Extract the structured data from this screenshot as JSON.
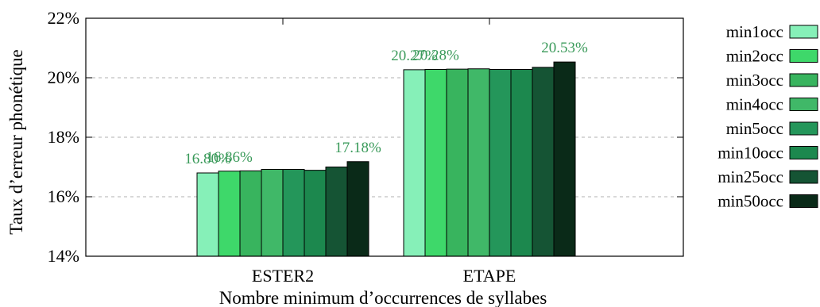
{
  "chart_data": {
    "type": "bar",
    "title": "",
    "xlabel": "Nombre minimum d’occurrences de syllabes",
    "ylabel": "Taux d’erreur phonétique",
    "ylim": [
      14,
      22
    ],
    "yticks": [
      14,
      16,
      18,
      20,
      22
    ],
    "ytick_suffix": "%",
    "grid": "horizontal dashed",
    "legend_position": "right",
    "categories": [
      "ESTER2",
      "ETAPE"
    ],
    "series": [
      {
        "name": "min1occ",
        "color": "#86f0b8",
        "values": [
          16.8,
          20.27
        ]
      },
      {
        "name": "min2occ",
        "color": "#3ed86a",
        "values": [
          16.86,
          20.28
        ]
      },
      {
        "name": "min3occ",
        "color": "#38b45e",
        "values": [
          16.87,
          20.29
        ]
      },
      {
        "name": "min4occ",
        "color": "#40b868",
        "values": [
          16.92,
          20.3
        ]
      },
      {
        "name": "min5occ",
        "color": "#24965a",
        "values": [
          16.92,
          20.28
        ]
      },
      {
        "name": "min10occ",
        "color": "#1c884e",
        "values": [
          16.89,
          20.28
        ]
      },
      {
        "name": "min25occ",
        "color": "#155434",
        "values": [
          17.0,
          20.35
        ]
      },
      {
        "name": "min50occ",
        "color": "#0a2a18",
        "values": [
          17.18,
          20.53
        ]
      }
    ],
    "annotations": [
      {
        "text": "16.80%",
        "category": 0,
        "series": 0
      },
      {
        "text": "16.86%",
        "category": 0,
        "series": 1
      },
      {
        "text": "17.18%",
        "category": 0,
        "series": 7
      },
      {
        "text": "20.27%",
        "category": 1,
        "series": 0
      },
      {
        "text": "20.28%",
        "category": 1,
        "series": 1
      },
      {
        "text": "20.53%",
        "category": 1,
        "series": 7
      }
    ],
    "annotation_color": "#3a9a5a"
  }
}
